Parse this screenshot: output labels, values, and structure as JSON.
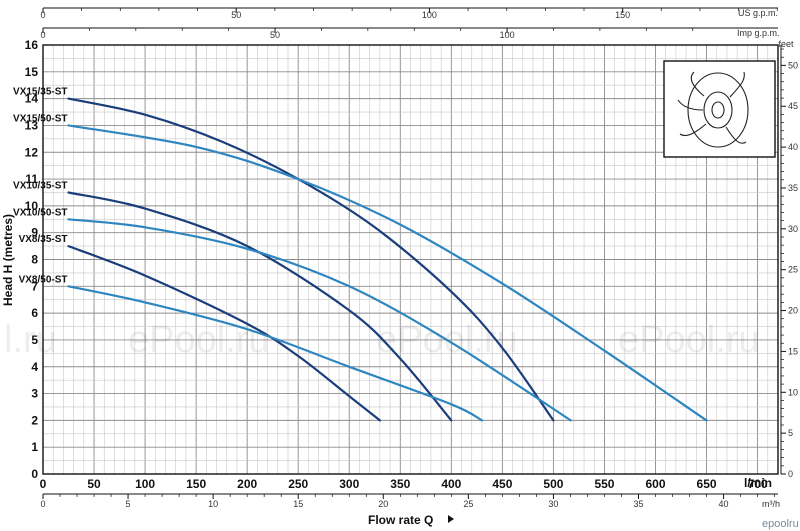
{
  "chart_data": {
    "type": "line",
    "ylabel": "Head H (metres)",
    "xlabel": "Flow rate Q",
    "x_unit": "l/min",
    "x2_unit": "m³/h",
    "top_unit_1": "US g.p.m.",
    "top_unit_2": "Imp g.p.m.",
    "right_unit": "feet",
    "xlim": [
      0,
      720
    ],
    "ylim": [
      0,
      16
    ],
    "grid": true,
    "x_ticks": [
      0,
      50,
      100,
      150,
      200,
      250,
      300,
      350,
      400,
      450,
      500,
      550,
      600,
      650,
      700
    ],
    "x2_ticks": [
      0,
      5,
      10,
      15,
      20,
      25,
      30,
      35,
      40
    ],
    "top1_ticks": [
      0,
      50,
      100,
      150
    ],
    "top2_ticks": [
      0,
      50,
      100
    ],
    "y_ticks": [
      0,
      1,
      2,
      3,
      4,
      5,
      6,
      7,
      8,
      9,
      10,
      11,
      12,
      13,
      14,
      15,
      16
    ],
    "right_ticks": [
      0,
      5,
      10,
      15,
      20,
      25,
      30,
      35,
      40,
      45,
      50
    ],
    "series": [
      {
        "name": "VX15/35-ST",
        "color": "#1a3d7c",
        "x": [
          25,
          100,
          175,
          250,
          325,
          400,
          450,
          500
        ],
        "y": [
          14,
          13.4,
          12.4,
          11,
          9.2,
          6.8,
          4.7,
          2
        ]
      },
      {
        "name": "VX15/50-ST",
        "color": "#2e86c1",
        "x": [
          25,
          150,
          250,
          350,
          450,
          550,
          650
        ],
        "y": [
          13,
          12.2,
          11,
          9.3,
          7.1,
          4.6,
          2
        ]
      },
      {
        "name": "VX10/35-ST",
        "color": "#1a3d7c",
        "x": [
          25,
          100,
          200,
          300,
          350,
          400
        ],
        "y": [
          10.5,
          9.9,
          8.5,
          6.1,
          4.3,
          2
        ]
      },
      {
        "name": "VX10/50-ST",
        "color": "#2e86c1",
        "x": [
          25,
          100,
          200,
          300,
          400,
          517
        ],
        "y": [
          9.5,
          9.2,
          8.4,
          7,
          4.9,
          2
        ]
      },
      {
        "name": "VX8/35-ST",
        "color": "#1a3d7c",
        "x": [
          25,
          100,
          200,
          250,
          300,
          330
        ],
        "y": [
          8.5,
          7.4,
          5.6,
          4.4,
          2.9,
          2
        ]
      },
      {
        "name": "VX8/50-ST",
        "color": "#2e86c1",
        "x": [
          25,
          100,
          200,
          300,
          400,
          430
        ],
        "y": [
          7,
          6.4,
          5.4,
          4,
          2.6,
          2
        ]
      }
    ]
  },
  "watermark": [
    "l.ru",
    "ePool.ru",
    "ePool.ru",
    "ePool.ru"
  ],
  "logo": "epoolru"
}
